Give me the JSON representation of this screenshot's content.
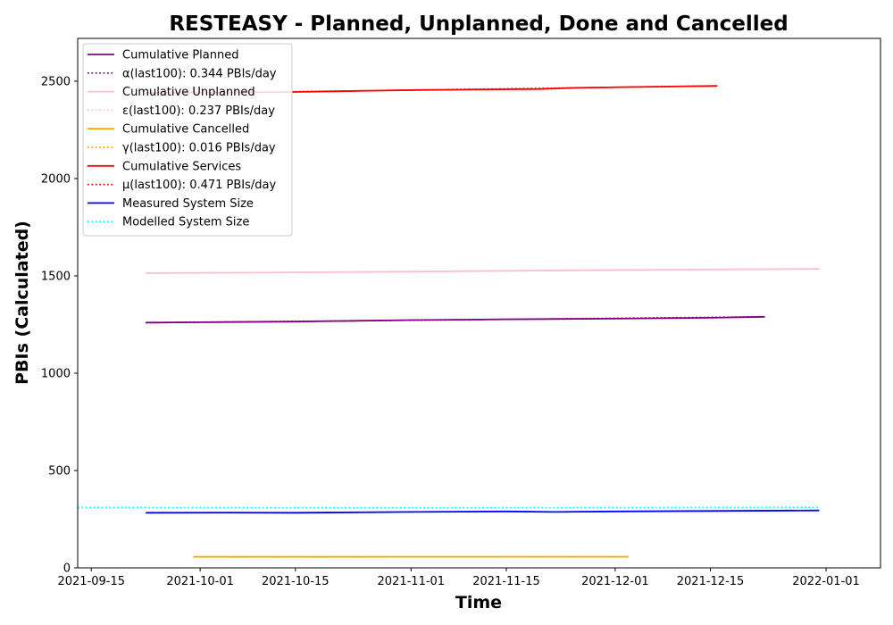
{
  "chart_data": {
    "type": "line",
    "title": "RESTEASY - Planned, Unplanned, Done  and Cancelled",
    "xlabel": "Time",
    "ylabel": "PBIs (Calculated)",
    "xlim": [
      "2021-09-13",
      "2022-01-09"
    ],
    "ylim": [
      0,
      2720
    ],
    "x_ticks": [
      {
        "date": "2021-09-15",
        "label": "2021-09-15"
      },
      {
        "date": "2021-10-01",
        "label": "2021-10-01"
      },
      {
        "date": "2021-10-15",
        "label": "2021-10-15"
      },
      {
        "date": "2021-11-01",
        "label": "2021-11-01"
      },
      {
        "date": "2021-11-15",
        "label": "2021-11-15"
      },
      {
        "date": "2021-12-01",
        "label": "2021-12-01"
      },
      {
        "date": "2021-12-15",
        "label": "2021-12-15"
      },
      {
        "date": "2022-01-01",
        "label": "2022-01-01"
      }
    ],
    "y_ticks": [
      0,
      500,
      1000,
      1500,
      2000,
      2500
    ],
    "grid": false,
    "legend_position": "upper-left",
    "series": [
      {
        "name": "Cumulative Planned",
        "color": "#800080",
        "style": "solid",
        "points": [
          [
            "2021-09-23",
            1260
          ],
          [
            "2021-10-01",
            1262
          ],
          [
            "2021-10-15",
            1265
          ],
          [
            "2021-11-01",
            1273
          ],
          [
            "2021-11-15",
            1277
          ],
          [
            "2021-12-01",
            1280
          ],
          [
            "2021-12-15",
            1285
          ],
          [
            "2021-12-23",
            1290
          ]
        ]
      },
      {
        "name": "α(last100): 0.344 PBIs/day",
        "color": "#800080",
        "style": "dotted",
        "points": [
          [
            "2021-09-23",
            1259
          ],
          [
            "2021-12-23",
            1290
          ]
        ]
      },
      {
        "name": "Cumulative Unplanned",
        "color": "#ffc0cb",
        "style": "solid",
        "points": [
          [
            "2021-09-23",
            1514
          ],
          [
            "2021-10-15",
            1518
          ],
          [
            "2021-11-01",
            1522
          ],
          [
            "2021-11-15",
            1526
          ],
          [
            "2021-12-01",
            1530
          ],
          [
            "2021-12-15",
            1533
          ],
          [
            "2021-12-31",
            1536
          ]
        ]
      },
      {
        "name": "ε(last100): 0.237 PBIs/day",
        "color": "#ffc0cb",
        "style": "dotted",
        "points": [
          [
            "2021-09-23",
            1513
          ],
          [
            "2021-12-31",
            1536
          ]
        ]
      },
      {
        "name": "Cumulative Cancelled",
        "color": "#ffa500",
        "style": "solid",
        "points": [
          [
            "2021-09-30",
            57
          ],
          [
            "2021-12-03",
            57
          ]
        ]
      },
      {
        "name": "γ(last100): 0.016 PBIs/day",
        "color": "#ffa500",
        "style": "dotted",
        "points": [
          [
            "2021-09-30",
            56
          ],
          [
            "2021-12-03",
            57
          ]
        ]
      },
      {
        "name": "Cumulative Services",
        "color": "#ff0000",
        "style": "solid",
        "points": [
          [
            "2021-09-23",
            2440
          ],
          [
            "2021-10-15",
            2445
          ],
          [
            "2021-10-28",
            2452
          ],
          [
            "2021-11-02",
            2455
          ],
          [
            "2021-11-20",
            2460
          ],
          [
            "2021-11-25",
            2466
          ],
          [
            "2021-12-03",
            2470
          ],
          [
            "2021-12-16",
            2476
          ]
        ]
      },
      {
        "name": "μ(last100): 0.471 PBIs/day",
        "color": "#ff0000",
        "style": "dotted",
        "points": [
          [
            "2021-09-23",
            2436
          ],
          [
            "2021-12-16",
            2476
          ]
        ]
      },
      {
        "name": "Measured System Size",
        "color": "#0000ff",
        "style": "solid",
        "points": [
          [
            "2021-09-23",
            283
          ],
          [
            "2021-10-05",
            284
          ],
          [
            "2021-10-15",
            283
          ],
          [
            "2021-11-01",
            287
          ],
          [
            "2021-11-15",
            290
          ],
          [
            "2021-11-22",
            287
          ],
          [
            "2021-12-01",
            290
          ],
          [
            "2021-12-15",
            292
          ],
          [
            "2021-12-31",
            295
          ]
        ]
      },
      {
        "name": "Modelled System Size",
        "color": "#00ffff",
        "style": "dotted",
        "points": [
          [
            "2021-09-13",
            310
          ],
          [
            "2021-09-23",
            310
          ],
          [
            "2021-10-15",
            309
          ],
          [
            "2021-11-15",
            309
          ],
          [
            "2021-12-15",
            310
          ],
          [
            "2021-12-31",
            311
          ]
        ]
      }
    ]
  }
}
